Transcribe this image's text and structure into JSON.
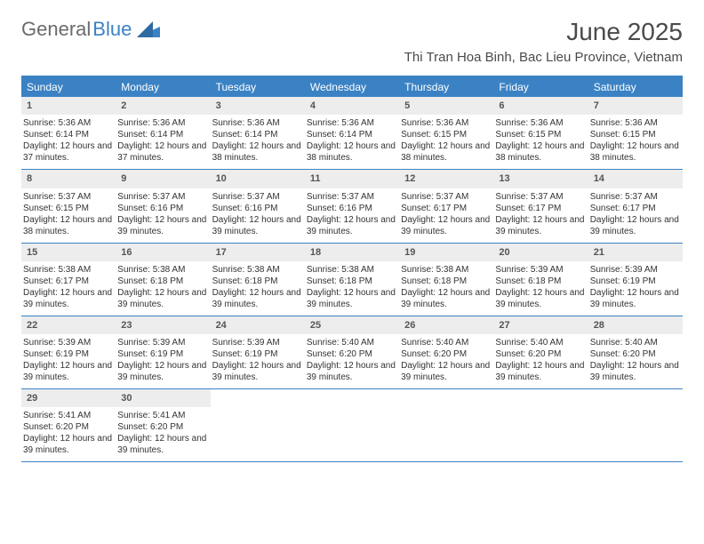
{
  "brand": {
    "part1": "General",
    "part2": "Blue"
  },
  "title": "June 2025",
  "location": "Thi Tran Hoa Binh, Bac Lieu Province, Vietnam",
  "colors": {
    "accent": "#3b82c4",
    "dow_bg": "#3b82c4",
    "dow_text": "#ffffff",
    "daynum_bg": "#ededed",
    "text": "#333333"
  },
  "days_of_week": [
    "Sunday",
    "Monday",
    "Tuesday",
    "Wednesday",
    "Thursday",
    "Friday",
    "Saturday"
  ],
  "weeks": [
    [
      {
        "n": "1",
        "sr": "Sunrise: 5:36 AM",
        "ss": "Sunset: 6:14 PM",
        "dl": "Daylight: 12 hours and 37 minutes."
      },
      {
        "n": "2",
        "sr": "Sunrise: 5:36 AM",
        "ss": "Sunset: 6:14 PM",
        "dl": "Daylight: 12 hours and 37 minutes."
      },
      {
        "n": "3",
        "sr": "Sunrise: 5:36 AM",
        "ss": "Sunset: 6:14 PM",
        "dl": "Daylight: 12 hours and 38 minutes."
      },
      {
        "n": "4",
        "sr": "Sunrise: 5:36 AM",
        "ss": "Sunset: 6:14 PM",
        "dl": "Daylight: 12 hours and 38 minutes."
      },
      {
        "n": "5",
        "sr": "Sunrise: 5:36 AM",
        "ss": "Sunset: 6:15 PM",
        "dl": "Daylight: 12 hours and 38 minutes."
      },
      {
        "n": "6",
        "sr": "Sunrise: 5:36 AM",
        "ss": "Sunset: 6:15 PM",
        "dl": "Daylight: 12 hours and 38 minutes."
      },
      {
        "n": "7",
        "sr": "Sunrise: 5:36 AM",
        "ss": "Sunset: 6:15 PM",
        "dl": "Daylight: 12 hours and 38 minutes."
      }
    ],
    [
      {
        "n": "8",
        "sr": "Sunrise: 5:37 AM",
        "ss": "Sunset: 6:15 PM",
        "dl": "Daylight: 12 hours and 38 minutes."
      },
      {
        "n": "9",
        "sr": "Sunrise: 5:37 AM",
        "ss": "Sunset: 6:16 PM",
        "dl": "Daylight: 12 hours and 39 minutes."
      },
      {
        "n": "10",
        "sr": "Sunrise: 5:37 AM",
        "ss": "Sunset: 6:16 PM",
        "dl": "Daylight: 12 hours and 39 minutes."
      },
      {
        "n": "11",
        "sr": "Sunrise: 5:37 AM",
        "ss": "Sunset: 6:16 PM",
        "dl": "Daylight: 12 hours and 39 minutes."
      },
      {
        "n": "12",
        "sr": "Sunrise: 5:37 AM",
        "ss": "Sunset: 6:17 PM",
        "dl": "Daylight: 12 hours and 39 minutes."
      },
      {
        "n": "13",
        "sr": "Sunrise: 5:37 AM",
        "ss": "Sunset: 6:17 PM",
        "dl": "Daylight: 12 hours and 39 minutes."
      },
      {
        "n": "14",
        "sr": "Sunrise: 5:37 AM",
        "ss": "Sunset: 6:17 PM",
        "dl": "Daylight: 12 hours and 39 minutes."
      }
    ],
    [
      {
        "n": "15",
        "sr": "Sunrise: 5:38 AM",
        "ss": "Sunset: 6:17 PM",
        "dl": "Daylight: 12 hours and 39 minutes."
      },
      {
        "n": "16",
        "sr": "Sunrise: 5:38 AM",
        "ss": "Sunset: 6:18 PM",
        "dl": "Daylight: 12 hours and 39 minutes."
      },
      {
        "n": "17",
        "sr": "Sunrise: 5:38 AM",
        "ss": "Sunset: 6:18 PM",
        "dl": "Daylight: 12 hours and 39 minutes."
      },
      {
        "n": "18",
        "sr": "Sunrise: 5:38 AM",
        "ss": "Sunset: 6:18 PM",
        "dl": "Daylight: 12 hours and 39 minutes."
      },
      {
        "n": "19",
        "sr": "Sunrise: 5:38 AM",
        "ss": "Sunset: 6:18 PM",
        "dl": "Daylight: 12 hours and 39 minutes."
      },
      {
        "n": "20",
        "sr": "Sunrise: 5:39 AM",
        "ss": "Sunset: 6:18 PM",
        "dl": "Daylight: 12 hours and 39 minutes."
      },
      {
        "n": "21",
        "sr": "Sunrise: 5:39 AM",
        "ss": "Sunset: 6:19 PM",
        "dl": "Daylight: 12 hours and 39 minutes."
      }
    ],
    [
      {
        "n": "22",
        "sr": "Sunrise: 5:39 AM",
        "ss": "Sunset: 6:19 PM",
        "dl": "Daylight: 12 hours and 39 minutes."
      },
      {
        "n": "23",
        "sr": "Sunrise: 5:39 AM",
        "ss": "Sunset: 6:19 PM",
        "dl": "Daylight: 12 hours and 39 minutes."
      },
      {
        "n": "24",
        "sr": "Sunrise: 5:39 AM",
        "ss": "Sunset: 6:19 PM",
        "dl": "Daylight: 12 hours and 39 minutes."
      },
      {
        "n": "25",
        "sr": "Sunrise: 5:40 AM",
        "ss": "Sunset: 6:20 PM",
        "dl": "Daylight: 12 hours and 39 minutes."
      },
      {
        "n": "26",
        "sr": "Sunrise: 5:40 AM",
        "ss": "Sunset: 6:20 PM",
        "dl": "Daylight: 12 hours and 39 minutes."
      },
      {
        "n": "27",
        "sr": "Sunrise: 5:40 AM",
        "ss": "Sunset: 6:20 PM",
        "dl": "Daylight: 12 hours and 39 minutes."
      },
      {
        "n": "28",
        "sr": "Sunrise: 5:40 AM",
        "ss": "Sunset: 6:20 PM",
        "dl": "Daylight: 12 hours and 39 minutes."
      }
    ],
    [
      {
        "n": "29",
        "sr": "Sunrise: 5:41 AM",
        "ss": "Sunset: 6:20 PM",
        "dl": "Daylight: 12 hours and 39 minutes."
      },
      {
        "n": "30",
        "sr": "Sunrise: 5:41 AM",
        "ss": "Sunset: 6:20 PM",
        "dl": "Daylight: 12 hours and 39 minutes."
      },
      {
        "n": "",
        "sr": "",
        "ss": "",
        "dl": "",
        "empty": true
      },
      {
        "n": "",
        "sr": "",
        "ss": "",
        "dl": "",
        "empty": true
      },
      {
        "n": "",
        "sr": "",
        "ss": "",
        "dl": "",
        "empty": true
      },
      {
        "n": "",
        "sr": "",
        "ss": "",
        "dl": "",
        "empty": true
      },
      {
        "n": "",
        "sr": "",
        "ss": "",
        "dl": "",
        "empty": true
      }
    ]
  ]
}
